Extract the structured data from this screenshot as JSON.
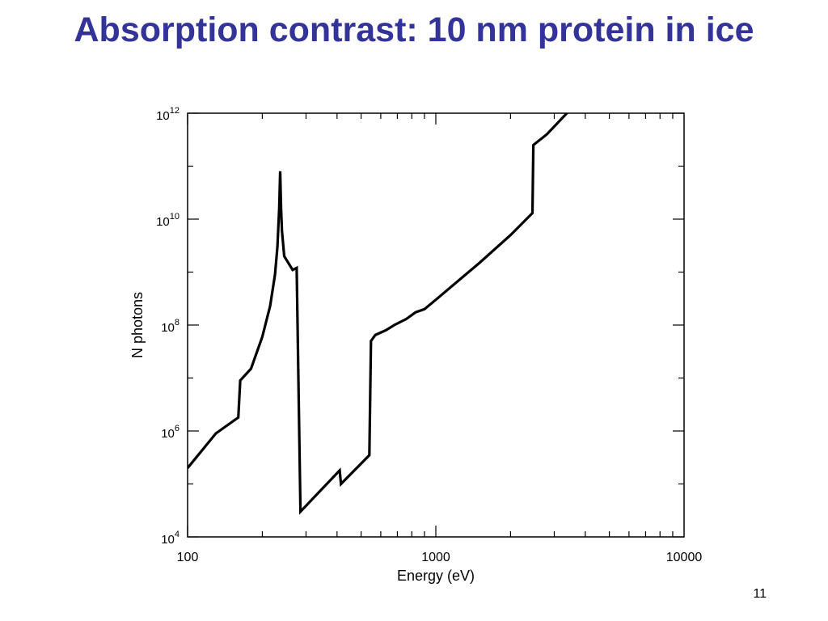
{
  "slide": {
    "title": "Absorption contrast: 10 nm protein in ice",
    "page_number": "11"
  },
  "chart_data": {
    "type": "line",
    "xlabel": "Energy (eV)",
    "ylabel": "N photons",
    "xscale": "log",
    "yscale": "log",
    "xlim": [
      100,
      10000
    ],
    "ylim": [
      10000,
      1000000000000
    ],
    "x_ticks": [
      {
        "value": 100,
        "label": "100"
      },
      {
        "value": 1000,
        "label": "1000"
      },
      {
        "value": 10000,
        "label": "10000"
      }
    ],
    "y_ticks": [
      {
        "value": 10000,
        "base": "10",
        "exp": "4"
      },
      {
        "value": 1000000,
        "base": "10",
        "exp": "6"
      },
      {
        "value": 100000000,
        "base": "10",
        "exp": "8"
      },
      {
        "value": 10000000000,
        "base": "10",
        "exp": "10"
      },
      {
        "value": 1000000000000,
        "base": "10",
        "exp": "12"
      }
    ],
    "grid": false,
    "series": [
      {
        "points": [
          [
            100,
            200000
          ],
          [
            130,
            900000
          ],
          [
            160,
            1800000
          ],
          [
            163,
            9000000
          ],
          [
            180,
            15000000
          ],
          [
            200,
            60000000
          ],
          [
            215,
            230000000
          ],
          [
            225,
            900000000
          ],
          [
            230,
            3000000000
          ],
          [
            234,
            16000000000
          ],
          [
            236,
            80000000000
          ],
          [
            238,
            16000000000
          ],
          [
            240,
            6000000000
          ],
          [
            245,
            2000000000
          ],
          [
            265,
            1100000000
          ],
          [
            275,
            1200000000
          ],
          [
            285,
            30000
          ],
          [
            410,
            180000
          ],
          [
            415,
            100000
          ],
          [
            540,
            350000
          ],
          [
            548,
            50000000
          ],
          [
            570,
            65000000
          ],
          [
            630,
            80000000
          ],
          [
            680,
            100000000
          ],
          [
            760,
            130000000
          ],
          [
            830,
            175000000
          ],
          [
            900,
            200000000
          ],
          [
            1000,
            300000000
          ],
          [
            1500,
            1500000000
          ],
          [
            2000,
            5000000000
          ],
          [
            2450,
            13000000000
          ],
          [
            2470,
            250000000000
          ],
          [
            2800,
            400000000000
          ],
          [
            3500,
            1200000000000
          ]
        ]
      }
    ]
  }
}
